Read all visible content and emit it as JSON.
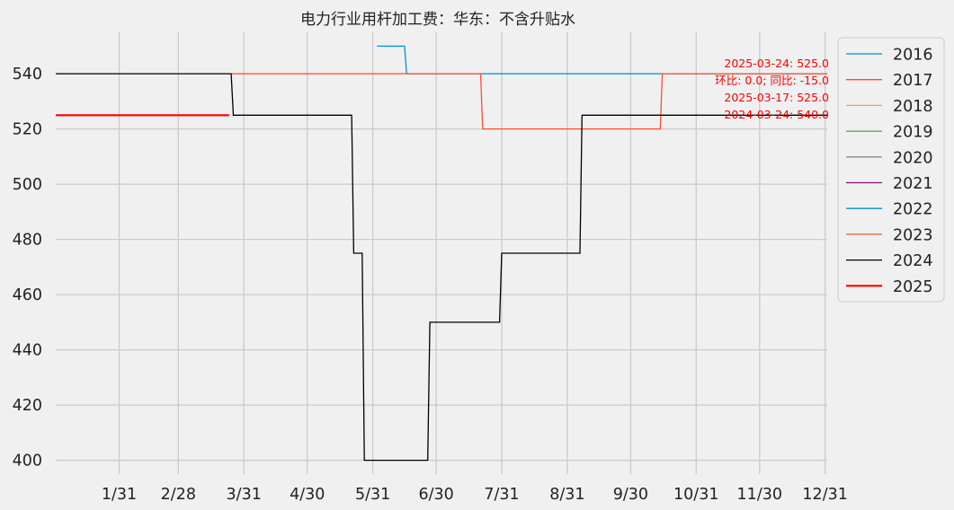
{
  "chart_data": {
    "type": "line",
    "title": "电力行业用杆加工费：华东：不含升贴水",
    "xlabel": "",
    "ylabel": "",
    "x_domain": [
      1,
      366
    ],
    "ylim": [
      395,
      555
    ],
    "grid": true,
    "legend_position": "outside right",
    "x_ticks": [
      {
        "day": 31,
        "label": "1/31"
      },
      {
        "day": 59,
        "label": "2/28"
      },
      {
        "day": 90,
        "label": "3/31"
      },
      {
        "day": 120,
        "label": "4/30"
      },
      {
        "day": 151,
        "label": "5/31"
      },
      {
        "day": 181,
        "label": "6/30"
      },
      {
        "day": 212,
        "label": "7/31"
      },
      {
        "day": 243,
        "label": "8/31"
      },
      {
        "day": 273,
        "label": "9/30"
      },
      {
        "day": 304,
        "label": "10/31"
      },
      {
        "day": 334,
        "label": "11/30"
      },
      {
        "day": 365,
        "label": "12/31"
      }
    ],
    "y_ticks": [
      400,
      420,
      440,
      460,
      480,
      500,
      520,
      540
    ],
    "annotations": [
      "2025-03-24: 525.0",
      "环比: 0.0; 同比: -15.0",
      "2025-03-17: 525.0",
      "2024-03-24: 540.0"
    ],
    "series": [
      {
        "name": "2016",
        "color": "#008fd5",
        "points": []
      },
      {
        "name": "2017",
        "color": "#fc4f30",
        "points": []
      },
      {
        "name": "2018",
        "color": "#e5ae38",
        "points": []
      },
      {
        "name": "2019",
        "color": "#6d904f",
        "points": []
      },
      {
        "name": "2020",
        "color": "#8b8b8b",
        "points": []
      },
      {
        "name": "2021",
        "color": "#810f7c",
        "points": []
      },
      {
        "name": "2022",
        "color": "#008fd5",
        "points": [
          [
            153,
            550
          ],
          [
            166,
            550
          ],
          [
            167,
            540
          ],
          [
            366,
            540
          ]
        ]
      },
      {
        "name": "2023",
        "color": "#fc4f30",
        "points": [
          [
            84,
            540
          ],
          [
            202,
            540
          ],
          [
            203,
            520
          ],
          [
            287,
            520
          ],
          [
            288,
            540
          ],
          [
            366,
            540
          ]
        ]
      },
      {
        "name": "2024",
        "color": "#000000",
        "points": [
          [
            1,
            540
          ],
          [
            84,
            540
          ],
          [
            85,
            525
          ],
          [
            141,
            525
          ],
          [
            142,
            475
          ],
          [
            146,
            475
          ],
          [
            147,
            400
          ],
          [
            177,
            400
          ],
          [
            178,
            450
          ],
          [
            211,
            450
          ],
          [
            212,
            475
          ],
          [
            249,
            475
          ],
          [
            250,
            525
          ],
          [
            366,
            525
          ]
        ]
      },
      {
        "name": "2025",
        "color": "#ff0000",
        "points": [
          [
            1,
            525
          ],
          [
            83,
            525
          ]
        ]
      }
    ]
  }
}
